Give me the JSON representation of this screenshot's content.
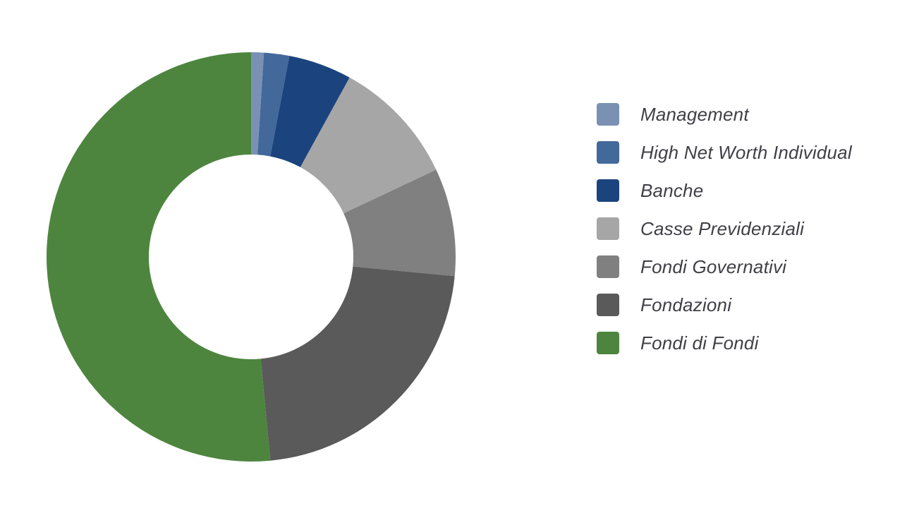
{
  "chart_data": {
    "type": "pie",
    "variant": "donut",
    "title": "",
    "legend_position": "right",
    "unit": "percent",
    "slices": [
      {
        "label": "Management",
        "value": 1.0,
        "color": "#7a91b4"
      },
      {
        "label": "High Net Worth Individual",
        "value": 2.0,
        "color": "#43699a"
      },
      {
        "label": "Banche",
        "value": 5.0,
        "color": "#1b447e"
      },
      {
        "label": "Casse Previdenziali",
        "value": 10.0,
        "color": "#a6a6a6"
      },
      {
        "label": "Fondi Governativi",
        "value": 8.5,
        "color": "#808080"
      },
      {
        "label": "Fondazioni",
        "value": 22.0,
        "color": "#5a5a5a"
      },
      {
        "label": "Fondi di Fondi",
        "value": 51.5,
        "color": "#4d853e"
      }
    ]
  }
}
